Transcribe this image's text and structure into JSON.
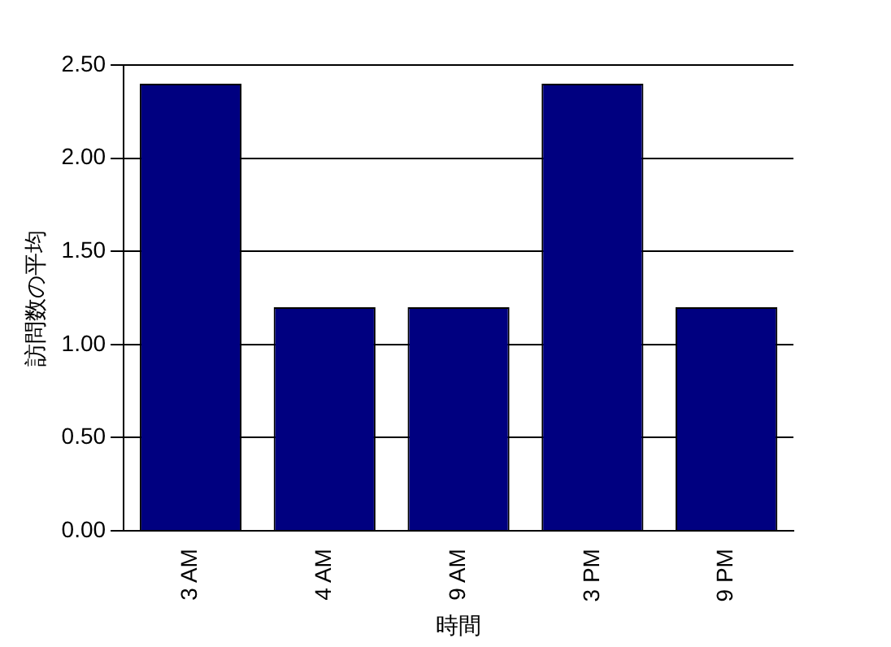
{
  "chart_data": {
    "type": "bar",
    "xlabel": "時間",
    "ylabel": "訪問数の平均",
    "categories": [
      "3 AM",
      "4 AM",
      "9 AM",
      "3 PM",
      "9 PM"
    ],
    "values": [
      2.4,
      1.2,
      1.2,
      2.4,
      1.2
    ],
    "color": "#000080",
    "ylim": [
      0,
      2.5
    ],
    "yticks": [
      {
        "value": 0,
        "label": "0.00"
      },
      {
        "value": 0.5,
        "label": "0.50"
      },
      {
        "value": 1,
        "label": "1.00"
      },
      {
        "value": 1.5,
        "label": "1.50"
      },
      {
        "value": 2,
        "label": "2.00"
      },
      {
        "value": 2.5,
        "label": "2.50"
      }
    ],
    "grid": "y"
  }
}
